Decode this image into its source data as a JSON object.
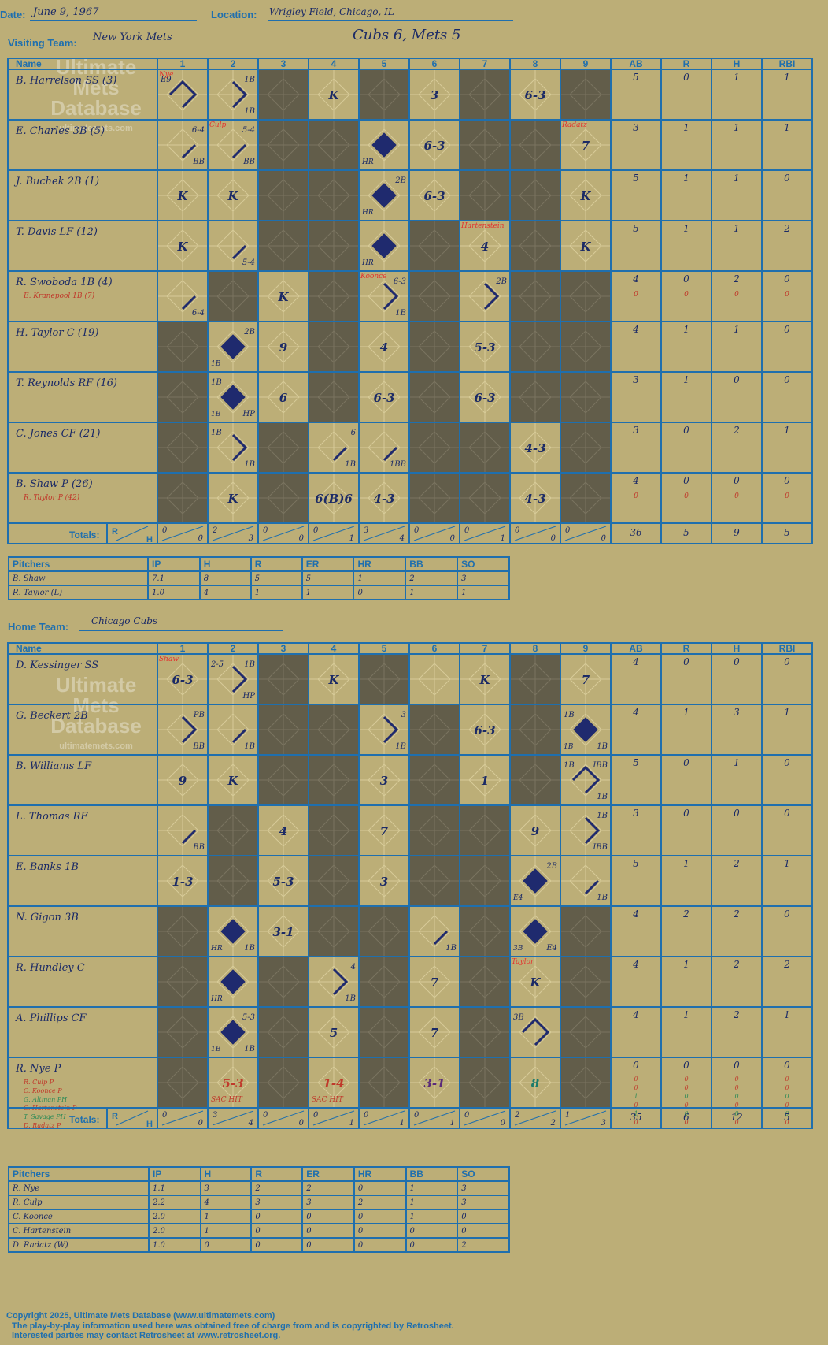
{
  "header": {
    "date_label": "Date:",
    "date": "June 9, 1967",
    "location_label": "Location:",
    "location": "Wrigley Field, Chicago, IL",
    "visiting_label": "Visiting Team:",
    "visiting_team": "New York Mets",
    "result": "Cubs 6, Mets 5",
    "home_label": "Home Team:",
    "home_team": "Chicago Cubs"
  },
  "watermark": {
    "line1": "Ultimate",
    "line2": "Mets",
    "line3": "Database",
    "url": "ultimatemets.com"
  },
  "columns": {
    "name": "Name",
    "innings": [
      "1",
      "2",
      "3",
      "4",
      "5",
      "6",
      "7",
      "8",
      "9"
    ],
    "stats": [
      "AB",
      "R",
      "H",
      "RBI"
    ],
    "totals_label": "Totals:",
    "r": "R",
    "h": "H"
  },
  "pitching_columns": [
    "Pitchers",
    "IP",
    "H",
    "R",
    "ER",
    "HR",
    "BB",
    "SO"
  ],
  "visitors": {
    "players": [
      {
        "name": "B. Harrelson SS (3)",
        "sub": "",
        "stats": [
          "5",
          "0",
          "1",
          "1"
        ],
        "sub_stats": []
      },
      {
        "name": "E. Charles 3B (5)",
        "sub": "",
        "stats": [
          "3",
          "1",
          "1",
          "1"
        ],
        "sub_stats": []
      },
      {
        "name": "J. Buchek 2B (1)",
        "sub": "",
        "stats": [
          "5",
          "1",
          "1",
          "0"
        ],
        "sub_stats": []
      },
      {
        "name": "T. Davis LF (12)",
        "sub": "",
        "stats": [
          "5",
          "1",
          "1",
          "2"
        ],
        "sub_stats": []
      },
      {
        "name": "R. Swoboda 1B (4)",
        "sub": "E. Kranepool 1B (7)",
        "stats": [
          "4",
          "0",
          "2",
          "0"
        ],
        "sub_stats": [
          "0",
          "0",
          "0",
          "0"
        ]
      },
      {
        "name": "H. Taylor C (19)",
        "sub": "",
        "stats": [
          "4",
          "1",
          "1",
          "0"
        ],
        "sub_stats": []
      },
      {
        "name": "T. Reynolds RF (16)",
        "sub": "",
        "stats": [
          "3",
          "1",
          "0",
          "0"
        ],
        "sub_stats": []
      },
      {
        "name": "C. Jones CF (21)",
        "sub": "",
        "stats": [
          "3",
          "0",
          "2",
          "1"
        ],
        "sub_stats": []
      },
      {
        "name": "B. Shaw P (26)",
        "sub": "R. Taylor P (42)",
        "stats": [
          "4",
          "0",
          "0",
          "0"
        ],
        "sub_stats": [
          "0",
          "0",
          "0",
          "0"
        ]
      }
    ],
    "shade": [
      [
        0,
        0,
        1,
        0,
        1,
        0,
        1,
        0,
        1
      ],
      [
        0,
        0,
        1,
        1,
        0,
        0,
        1,
        1,
        0
      ],
      [
        0,
        0,
        1,
        1,
        0,
        0,
        1,
        1,
        0
      ],
      [
        0,
        0,
        1,
        1,
        0,
        1,
        0,
        1,
        0
      ],
      [
        0,
        1,
        0,
        1,
        0,
        1,
        0,
        1,
        1
      ],
      [
        1,
        0,
        0,
        1,
        0,
        1,
        0,
        1,
        1
      ],
      [
        1,
        0,
        0,
        1,
        0,
        1,
        0,
        1,
        1
      ],
      [
        1,
        0,
        1,
        0,
        0,
        1,
        1,
        0,
        1
      ],
      [
        1,
        0,
        1,
        0,
        0,
        1,
        1,
        0,
        1
      ]
    ],
    "cells": [
      {
        "r": 0,
        "i": 1,
        "c": "",
        "tl": "E9",
        "note": "Nye",
        "note_color": "red",
        "path": 3
      },
      {
        "r": 0,
        "i": 2,
        "c": "",
        "tr": "1B",
        "br": "1B",
        "path": 2
      },
      {
        "r": 0,
        "i": 4,
        "c": "K"
      },
      {
        "r": 0,
        "i": 6,
        "c": "3"
      },
      {
        "r": 0,
        "i": 8,
        "c": "6-3"
      },
      {
        "r": 1,
        "i": 1,
        "c": "",
        "tr": "6-4",
        "br": "BB",
        "path": 1
      },
      {
        "r": 1,
        "i": 2,
        "c": "",
        "tr": "5-4",
        "br": "BB",
        "note": "Culp",
        "note_color": "red",
        "path": 1
      },
      {
        "r": 1,
        "i": 5,
        "c": "",
        "bl": "HR",
        "path": 4
      },
      {
        "r": 1,
        "i": 6,
        "c": "6-3"
      },
      {
        "r": 1,
        "i": 9,
        "c": "7",
        "note": "Radatz",
        "note_color": "red"
      },
      {
        "r": 2,
        "i": 1,
        "c": "K"
      },
      {
        "r": 2,
        "i": 2,
        "c": "K"
      },
      {
        "r": 2,
        "i": 5,
        "c": "",
        "tr": "2B",
        "bl": "HR",
        "path": 4
      },
      {
        "r": 2,
        "i": 6,
        "c": "6-3"
      },
      {
        "r": 2,
        "i": 9,
        "c": "K"
      },
      {
        "r": 3,
        "i": 1,
        "c": "K"
      },
      {
        "r": 3,
        "i": 2,
        "c": "",
        "br": "5-4",
        "path": 1
      },
      {
        "r": 3,
        "i": 5,
        "c": "",
        "bl": "HR",
        "path": 4
      },
      {
        "r": 3,
        "i": 7,
        "c": "4",
        "note": "Hartenstein",
        "note_color": "red"
      },
      {
        "r": 3,
        "i": 9,
        "c": "K"
      },
      {
        "r": 4,
        "i": 1,
        "c": "",
        "br": "6-4",
        "path": 1
      },
      {
        "r": 4,
        "i": 3,
        "c": "K"
      },
      {
        "r": 4,
        "i": 5,
        "c": "",
        "tr": "6-3",
        "br": "1B",
        "note": "Koonce",
        "note_color": "red",
        "path": 2
      },
      {
        "r": 4,
        "i": 7,
        "c": "",
        "tr": "2B",
        "path": 2
      },
      {
        "r": 5,
        "i": 2,
        "c": "",
        "tr": "2B",
        "bl": "1B",
        "path": 4
      },
      {
        "r": 5,
        "i": 3,
        "c": "9"
      },
      {
        "r": 5,
        "i": 5,
        "c": "4"
      },
      {
        "r": 5,
        "i": 7,
        "c": "5-3"
      },
      {
        "r": 6,
        "i": 2,
        "c": "",
        "tl": "1B",
        "bl": "1B",
        "br": "HP",
        "path": 4
      },
      {
        "r": 6,
        "i": 3,
        "c": "6"
      },
      {
        "r": 6,
        "i": 5,
        "c": "6-3"
      },
      {
        "r": 6,
        "i": 7,
        "c": "6-3"
      },
      {
        "r": 7,
        "i": 2,
        "c": "",
        "tl": "1B",
        "br": "1B",
        "path": 2
      },
      {
        "r": 7,
        "i": 4,
        "c": "",
        "tr": "6",
        "br": "1B",
        "path": 1
      },
      {
        "r": 7,
        "i": 5,
        "c": "",
        "br": "1BB",
        "path": 1
      },
      {
        "r": 7,
        "i": 8,
        "c": "4-3"
      },
      {
        "r": 8,
        "i": 2,
        "c": "K"
      },
      {
        "r": 8,
        "i": 4,
        "c": "6(B)6"
      },
      {
        "r": 8,
        "i": 5,
        "c": "4-3"
      },
      {
        "r": 8,
        "i": 8,
        "c": "4-3"
      }
    ],
    "inning_totals": [
      [
        "0",
        "0"
      ],
      [
        "2",
        "3"
      ],
      [
        "0",
        "0"
      ],
      [
        "0",
        "1"
      ],
      [
        "3",
        "4"
      ],
      [
        "0",
        "0"
      ],
      [
        "0",
        "1"
      ],
      [
        "0",
        "0"
      ],
      [
        "0",
        "0"
      ]
    ],
    "totals": [
      "36",
      "5",
      "9",
      "5"
    ],
    "pitchers": [
      {
        "name": "B. Shaw",
        "ip": "7.1",
        "h": "8",
        "r": "5",
        "er": "5",
        "hr": "1",
        "bb": "2",
        "so": "3"
      },
      {
        "name": "R. Taylor (L)",
        "ip": "1.0",
        "h": "4",
        "r": "1",
        "er": "1",
        "hr": "0",
        "bb": "1",
        "so": "1"
      }
    ]
  },
  "home": {
    "players": [
      {
        "name": "D. Kessinger SS",
        "sub": "",
        "stats": [
          "4",
          "0",
          "0",
          "0"
        ],
        "sub_stats": []
      },
      {
        "name": "G. Beckert 2B",
        "sub": "",
        "stats": [
          "4",
          "1",
          "3",
          "1"
        ],
        "sub_stats": []
      },
      {
        "name": "B. Williams LF",
        "sub": "",
        "stats": [
          "5",
          "0",
          "1",
          "0"
        ],
        "sub_stats": []
      },
      {
        "name": "L. Thomas RF",
        "sub": "",
        "stats": [
          "3",
          "0",
          "0",
          "0"
        ],
        "sub_stats": []
      },
      {
        "name": "E. Banks 1B",
        "sub": "",
        "stats": [
          "5",
          "1",
          "2",
          "1"
        ],
        "sub_stats": []
      },
      {
        "name": "N. Gigon 3B",
        "sub": "",
        "stats": [
          "4",
          "2",
          "2",
          "0"
        ],
        "sub_stats": []
      },
      {
        "name": "R. Hundley C",
        "sub": "",
        "stats": [
          "4",
          "1",
          "2",
          "2"
        ],
        "sub_stats": []
      },
      {
        "name": "A. Phillips CF",
        "sub": "",
        "stats": [
          "4",
          "1",
          "2",
          "1"
        ],
        "sub_stats": []
      },
      {
        "name": "R. Nye P",
        "subs": [
          "R. Culp P",
          "C. Koonce P",
          "G. Altman PH",
          "C. Hartenstein P",
          "T. Savage PH",
          "D. Radatz P"
        ],
        "stats": [
          "0",
          "0",
          "0",
          "0"
        ],
        "sub_rows": [
          [
            "0",
            "0",
            "0",
            "0"
          ],
          [
            "0",
            "0",
            "0",
            "0"
          ],
          [
            "1",
            "0",
            "0",
            "0"
          ],
          [
            "0",
            "0",
            "0",
            "0"
          ],
          [
            "1",
            "0",
            "0",
            "0"
          ],
          [
            "0",
            "0",
            "0",
            "0"
          ]
        ]
      }
    ],
    "shade": [
      [
        0,
        0,
        1,
        0,
        1,
        0,
        0,
        1,
        0
      ],
      [
        0,
        0,
        1,
        1,
        0,
        1,
        0,
        1,
        0
      ],
      [
        0,
        0,
        1,
        1,
        0,
        1,
        0,
        1,
        0
      ],
      [
        0,
        1,
        0,
        1,
        0,
        1,
        1,
        0,
        0
      ],
      [
        0,
        1,
        0,
        1,
        0,
        1,
        1,
        0,
        0
      ],
      [
        1,
        0,
        0,
        1,
        1,
        0,
        1,
        0,
        1
      ],
      [
        1,
        0,
        1,
        0,
        1,
        0,
        1,
        0,
        1
      ],
      [
        1,
        0,
        1,
        0,
        1,
        0,
        1,
        0,
        1
      ],
      [
        1,
        0,
        1,
        0,
        1,
        0,
        1,
        0,
        1
      ]
    ],
    "cells": [
      {
        "r": 0,
        "i": 1,
        "c": "6-3",
        "note": "Shaw",
        "note_color": "red"
      },
      {
        "r": 0,
        "i": 2,
        "c": "",
        "tl": "2-5",
        "tr": "1B",
        "br": "HP",
        "path": 2
      },
      {
        "r": 0,
        "i": 4,
        "c": "K"
      },
      {
        "r": 0,
        "i": 7,
        "c": "K"
      },
      {
        "r": 0,
        "i": 9,
        "c": "7"
      },
      {
        "r": 1,
        "i": 1,
        "c": "",
        "tr": "PB",
        "br": "BB",
        "path": 2
      },
      {
        "r": 1,
        "i": 2,
        "c": "",
        "br": "1B",
        "path": 1
      },
      {
        "r": 1,
        "i": 5,
        "c": "",
        "tr": "3",
        "br": "1B",
        "path": 2
      },
      {
        "r": 1,
        "i": 7,
        "c": "6-3"
      },
      {
        "r": 1,
        "i": 9,
        "c": "",
        "tl": "1B",
        "bl": "1B",
        "br": "1B",
        "path": 4
      },
      {
        "r": 2,
        "i": 1,
        "c": "9"
      },
      {
        "r": 2,
        "i": 2,
        "c": "K"
      },
      {
        "r": 2,
        "i": 5,
        "c": "3"
      },
      {
        "r": 2,
        "i": 7,
        "c": "1"
      },
      {
        "r": 2,
        "i": 9,
        "c": "",
        "tl": "1B",
        "tr": "IBB",
        "br": "1B",
        "path": 3
      },
      {
        "r": 3,
        "i": 1,
        "c": "",
        "br": "BB",
        "path": 1
      },
      {
        "r": 3,
        "i": 3,
        "c": "4"
      },
      {
        "r": 3,
        "i": 5,
        "c": "7"
      },
      {
        "r": 3,
        "i": 8,
        "c": "9"
      },
      {
        "r": 3,
        "i": 9,
        "c": "",
        "tr": "1B",
        "br": "IBB",
        "path": 2
      },
      {
        "r": 4,
        "i": 1,
        "c": "1-3"
      },
      {
        "r": 4,
        "i": 3,
        "c": "5-3"
      },
      {
        "r": 4,
        "i": 5,
        "c": "3"
      },
      {
        "r": 4,
        "i": 8,
        "c": "",
        "tr": "2B",
        "bl": "E4",
        "path": 4
      },
      {
        "r": 4,
        "i": 9,
        "c": "",
        "br": "1B",
        "path": 1
      },
      {
        "r": 5,
        "i": 2,
        "c": "",
        "bl": "HR",
        "br": "1B",
        "path": 4
      },
      {
        "r": 5,
        "i": 3,
        "c": "3-1"
      },
      {
        "r": 5,
        "i": 6,
        "c": "",
        "br": "1B",
        "path": 1
      },
      {
        "r": 5,
        "i": 8,
        "c": "",
        "bl": "3B",
        "br": "E4",
        "path": 4
      },
      {
        "r": 6,
        "i": 2,
        "c": "",
        "bl": "HR",
        "path": 4
      },
      {
        "r": 6,
        "i": 4,
        "c": "",
        "tr": "4",
        "br": "1B",
        "path": 2
      },
      {
        "r": 6,
        "i": 6,
        "c": "7"
      },
      {
        "r": 6,
        "i": 8,
        "c": "K",
        "note": "Taylor",
        "note_color": "red"
      },
      {
        "r": 7,
        "i": 2,
        "c": "",
        "tr": "5-3",
        "bl": "1B",
        "br": "1B",
        "path": 4
      },
      {
        "r": 7,
        "i": 4,
        "c": "5"
      },
      {
        "r": 7,
        "i": 6,
        "c": "7"
      },
      {
        "r": 7,
        "i": 8,
        "c": "",
        "tl": "3B",
        "path": 3
      },
      {
        "r": 8,
        "i": 2,
        "c": "5-3",
        "bl": "SAC HIT",
        "ccolor": "#c0392b"
      },
      {
        "r": 8,
        "i": 4,
        "c": "1-4",
        "bl": "SAC HIT",
        "ccolor": "#c0392b"
      },
      {
        "r": 8,
        "i": 6,
        "c": "3-1",
        "ccolor": "#5b2b7a"
      },
      {
        "r": 8,
        "i": 8,
        "c": "8",
        "ccolor": "#1a7a6b"
      }
    ],
    "inning_totals": [
      [
        "0",
        "0"
      ],
      [
        "3",
        "4"
      ],
      [
        "0",
        "0"
      ],
      [
        "0",
        "1"
      ],
      [
        "0",
        "1"
      ],
      [
        "0",
        "1"
      ],
      [
        "0",
        "0"
      ],
      [
        "2",
        "2"
      ],
      [
        "1",
        "3"
      ]
    ],
    "totals": [
      "35",
      "6",
      "12",
      "5"
    ],
    "pitchers": [
      {
        "name": "R. Nye",
        "ip": "1.1",
        "h": "3",
        "r": "2",
        "er": "2",
        "hr": "0",
        "bb": "1",
        "so": "3"
      },
      {
        "name": "R. Culp",
        "ip": "2.2",
        "h": "4",
        "r": "3",
        "er": "3",
        "hr": "2",
        "bb": "1",
        "so": "3"
      },
      {
        "name": "C. Koonce",
        "ip": "2.0",
        "h": "1",
        "r": "0",
        "er": "0",
        "hr": "0",
        "bb": "1",
        "so": "0"
      },
      {
        "name": "C. Hartenstein",
        "ip": "2.0",
        "h": "1",
        "r": "0",
        "er": "0",
        "hr": "0",
        "bb": "0",
        "so": "0"
      },
      {
        "name": "D. Radatz (W)",
        "ip": "1.0",
        "h": "0",
        "r": "0",
        "er": "0",
        "hr": "0",
        "bb": "0",
        "so": "2"
      }
    ]
  },
  "footer": {
    "line1": "Copyright 2025, Ultimate Mets Database (www.ultimatemets.com)",
    "line2": "The play-by-play information used here was obtained free of charge from and is copyrighted by Retrosheet.",
    "line3": "Interested parties may contact Retrosheet at www.retrosheet.org."
  },
  "colors": {
    "background": "#bcae77",
    "grid": "#1f6fae",
    "shade": "#625d4a",
    "ink": "#1b2a66",
    "note": "#e3342f"
  }
}
